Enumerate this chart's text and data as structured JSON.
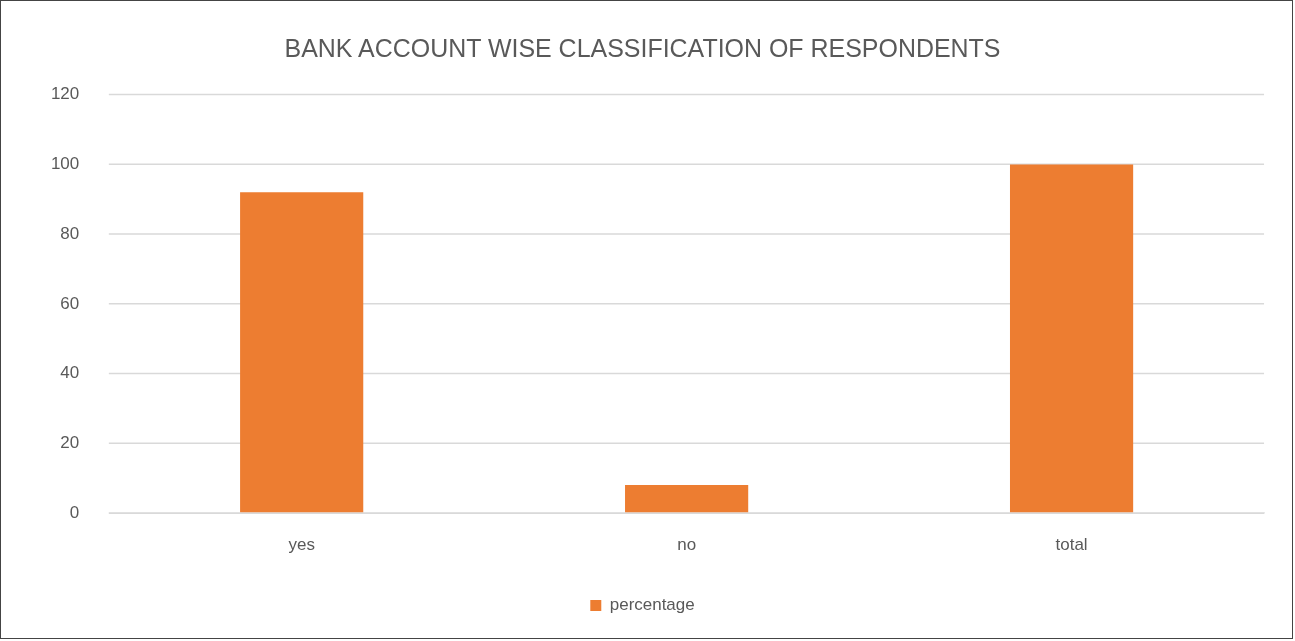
{
  "chart_data": {
    "type": "bar",
    "title": "BANK ACCOUNT WISE CLASSIFICATION OF RESPONDENTS",
    "categories": [
      "yes",
      "no",
      "total"
    ],
    "series": [
      {
        "name": "percentage",
        "color": "#ed7d31",
        "values": [
          92,
          8,
          100
        ]
      }
    ],
    "ylim": [
      0,
      120
    ],
    "yticks": [
      0,
      20,
      40,
      60,
      80,
      100,
      120
    ],
    "grid": "y",
    "legend": "bottom"
  }
}
